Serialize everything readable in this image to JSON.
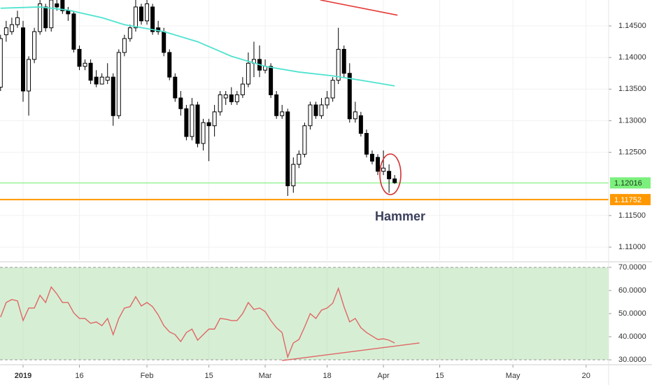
{
  "chart_data": [
    {
      "type": "candlestick",
      "x": [
        -4,
        -3,
        -2,
        -1,
        0,
        1,
        2,
        3,
        4,
        5,
        6,
        7,
        8,
        9,
        10,
        11,
        12,
        13,
        14,
        15,
        16,
        17,
        18,
        19,
        20,
        21,
        22,
        23,
        24,
        25,
        26,
        27,
        28,
        29,
        30,
        31,
        32,
        33,
        34,
        35,
        36,
        37,
        38,
        39,
        40,
        41,
        42,
        43,
        44,
        45,
        46,
        47,
        48,
        49,
        50,
        51,
        52,
        53,
        54,
        55,
        56,
        57,
        58,
        59,
        60,
        61,
        62,
        63,
        64,
        65,
        66
      ],
      "open": [
        1.1353,
        1.1436,
        1.1441,
        1.1452,
        1.1447,
        1.1347,
        1.1397,
        1.1441,
        1.148,
        1.1447,
        1.1485,
        1.1491,
        1.1474,
        1.1469,
        1.1413,
        1.1386,
        1.1391,
        1.1369,
        1.1358,
        1.1364,
        1.1369,
        1.1308,
        1.1408,
        1.143,
        1.1447,
        1.148,
        1.1458,
        1.148,
        1.1447,
        1.1441,
        1.1408,
        1.1369,
        1.1336,
        1.1319,
        1.1275,
        1.1325,
        1.1264,
        1.1297,
        1.1292,
        1.1314,
        1.1336,
        1.1341,
        1.133,
        1.1341,
        1.1358,
        1.1391,
        1.1397,
        1.138,
        1.1386,
        1.1341,
        1.1308,
        1.1314,
        1.1197,
        1.1231,
        1.1247,
        1.1292,
        1.1325,
        1.1308,
        1.1325,
        1.1336,
        1.1364,
        1.1413,
        1.1375,
        1.1303,
        1.1308,
        1.128,
        1.1247,
        1.1242,
        1.122,
        1.122,
        1.1208
      ],
      "high": [
        1.1436,
        1.1458,
        1.1463,
        1.1474,
        1.1458,
        1.1402,
        1.1447,
        1.1491,
        1.1485,
        1.1491,
        1.1491,
        1.1491,
        1.148,
        1.1474,
        1.1419,
        1.1397,
        1.1397,
        1.138,
        1.1375,
        1.1391,
        1.1375,
        1.1413,
        1.1436,
        1.1452,
        1.1491,
        1.1485,
        1.1491,
        1.1485,
        1.1458,
        1.1447,
        1.1413,
        1.1375,
        1.1347,
        1.1325,
        1.1336,
        1.133,
        1.1303,
        1.1303,
        1.1325,
        1.1347,
        1.1347,
        1.1353,
        1.1347,
        1.1369,
        1.1408,
        1.1425,
        1.1419,
        1.1397,
        1.1391,
        1.1347,
        1.1325,
        1.1319,
        1.1242,
        1.1253,
        1.1297,
        1.133,
        1.133,
        1.1336,
        1.1347,
        1.1369,
        1.1447,
        1.1419,
        1.1391,
        1.133,
        1.1314,
        1.1286,
        1.1253,
        1.1247,
        1.1253,
        1.1231,
        1.1214
      ],
      "low": [
        1.1347,
        1.1425,
        1.1436,
        1.1447,
        1.133,
        1.1308,
        1.1391,
        1.1436,
        1.1441,
        1.1441,
        1.1474,
        1.1469,
        1.1458,
        1.1408,
        1.138,
        1.138,
        1.1358,
        1.1353,
        1.1358,
        1.1358,
        1.1292,
        1.1303,
        1.1402,
        1.1425,
        1.1441,
        1.1452,
        1.1452,
        1.1436,
        1.1436,
        1.1402,
        1.1364,
        1.133,
        1.1308,
        1.1269,
        1.1269,
        1.1258,
        1.1253,
        1.1236,
        1.1275,
        1.1308,
        1.1325,
        1.1325,
        1.1325,
        1.1336,
        1.1353,
        1.1369,
        1.1369,
        1.1375,
        1.1336,
        1.1303,
        1.1303,
        1.1181,
        1.1186,
        1.1225,
        1.1242,
        1.1286,
        1.1303,
        1.1303,
        1.1319,
        1.133,
        1.1358,
        1.1369,
        1.1297,
        1.1297,
        1.1275,
        1.1242,
        1.1231,
        1.1214,
        1.1214,
        1.1186,
        1.12
      ],
      "close": [
        1.143,
        1.1447,
        1.1452,
        1.1463,
        1.1347,
        1.1397,
        1.1441,
        1.1485,
        1.1447,
        1.1491,
        1.148,
        1.1474,
        1.1469,
        1.1413,
        1.1386,
        1.1391,
        1.1364,
        1.1358,
        1.1369,
        1.1369,
        1.1308,
        1.1408,
        1.143,
        1.1447,
        1.148,
        1.1458,
        1.1485,
        1.1441,
        1.1441,
        1.1408,
        1.1369,
        1.1336,
        1.1319,
        1.1275,
        1.1325,
        1.1264,
        1.1297,
        1.1292,
        1.1314,
        1.1341,
        1.1341,
        1.133,
        1.1341,
        1.1358,
        1.1391,
        1.1397,
        1.138,
        1.1386,
        1.1341,
        1.1308,
        1.1314,
        1.1197,
        1.1231,
        1.1247,
        1.1292,
        1.1325,
        1.1308,
        1.1325,
        1.1336,
        1.1364,
        1.1413,
        1.1375,
        1.1303,
        1.1314,
        1.128,
        1.1247,
        1.1236,
        1.122,
        1.1225,
        1.1208,
        1.1202
      ],
      "up_color": "#ffffff",
      "down_color": "#000000",
      "xlim": [
        -4.1,
        104
      ],
      "xticks": [
        {
          "value": 0,
          "label": "2019"
        },
        {
          "value": 10,
          "label": "16"
        },
        {
          "value": 22,
          "label": "Feb"
        },
        {
          "value": 33,
          "label": "15"
        },
        {
          "value": 43,
          "label": "Mar"
        },
        {
          "value": 54,
          "label": "18"
        },
        {
          "value": 64,
          "label": "Apr"
        },
        {
          "value": 74,
          "label": "15"
        },
        {
          "value": 87,
          "label": "May"
        },
        {
          "value": 100,
          "label": "20"
        }
      ],
      "ylim": [
        1.1079,
        1.1491
      ],
      "yticks": [
        {
          "value": 1.145,
          "label": "1.14500"
        },
        {
          "value": 1.14,
          "label": "1.14000"
        },
        {
          "value": 1.135,
          "label": "1.13500"
        },
        {
          "value": 1.13,
          "label": "1.13000"
        },
        {
          "value": 1.125,
          "label": "1.12500"
        },
        {
          "value": 1.115,
          "label": "1.11500"
        },
        {
          "value": 1.11,
          "label": "1.11000"
        }
      ],
      "grid": true,
      "overlays": [
        {
          "type": "line",
          "color": "#4fe3cf",
          "x": [
            -4,
            3,
            8,
            14,
            18,
            25,
            31,
            37,
            43,
            49,
            55,
            60,
            66
          ],
          "values": [
            1.1478,
            1.148,
            1.1475,
            1.1463,
            1.1452,
            1.1441,
            1.1425,
            1.1402,
            1.1386,
            1.1377,
            1.1371,
            1.1364,
            1.1355
          ]
        },
        {
          "type": "line",
          "color": "#e53935",
          "x": [
            52.8,
            66.5
          ],
          "values": [
            1.1491,
            1.1467
          ]
        }
      ],
      "price_lines": [
        {
          "value": 1.12016,
          "color": "#7cf07c",
          "text_color": "#1b3a1b"
        },
        {
          "value": 1.11752,
          "color": "#ff9800",
          "text_color": "#ffffff"
        }
      ],
      "annotation": "Hammer"
    },
    {
      "type": "line",
      "x": [
        -4,
        -3,
        -2,
        -1,
        0,
        1,
        2,
        3,
        4,
        5,
        6,
        7,
        8,
        9,
        10,
        11,
        12,
        13,
        14,
        15,
        16,
        17,
        18,
        19,
        20,
        21,
        22,
        23,
        24,
        25,
        26,
        27,
        28,
        29,
        30,
        31,
        32,
        33,
        34,
        35,
        36,
        37,
        38,
        39,
        40,
        41,
        42,
        43,
        44,
        45,
        46,
        47,
        48,
        49,
        50,
        51,
        52,
        53,
        54,
        55,
        56,
        57,
        58,
        59,
        60,
        61,
        62,
        63,
        64,
        65,
        66
      ],
      "values": [
        48.5,
        54.8,
        56.1,
        55.5,
        47.0,
        52.4,
        52.4,
        57.9,
        54.8,
        61.5,
        58.5,
        54.8,
        54.8,
        50.3,
        47.9,
        47.9,
        45.8,
        46.4,
        44.8,
        47.9,
        40.9,
        47.9,
        52.4,
        53.0,
        57.3,
        53.3,
        54.8,
        53.0,
        49.4,
        44.8,
        42.1,
        40.9,
        37.9,
        41.8,
        43.3,
        38.5,
        40.9,
        43.3,
        43.3,
        47.9,
        47.6,
        47.0,
        47.0,
        50.0,
        54.8,
        51.8,
        52.4,
        50.9,
        47.0,
        43.9,
        41.8,
        31.2,
        37.3,
        38.8,
        44.2,
        50.0,
        47.9,
        51.5,
        52.4,
        54.5,
        60.9,
        53.0,
        46.4,
        47.9,
        43.9,
        41.8,
        40.3,
        38.8,
        39.1,
        38.5,
        37.3
      ],
      "color": "#e06666",
      "ylim": [
        28.2,
        71.8
      ],
      "yticks": [
        {
          "value": 70,
          "label": "70.0000"
        },
        {
          "value": 60,
          "label": "60.0000"
        },
        {
          "value": 50,
          "label": "50.0000"
        },
        {
          "value": 40,
          "label": "40.0000"
        },
        {
          "value": 30,
          "label": "30.0000"
        }
      ],
      "band": [
        30,
        70
      ],
      "band_color": "#d6efd4",
      "overlays": [
        {
          "type": "line",
          "color": "#e06666",
          "x": [
            46,
            70.4
          ],
          "values": [
            29.7,
            37.3
          ]
        }
      ]
    }
  ]
}
